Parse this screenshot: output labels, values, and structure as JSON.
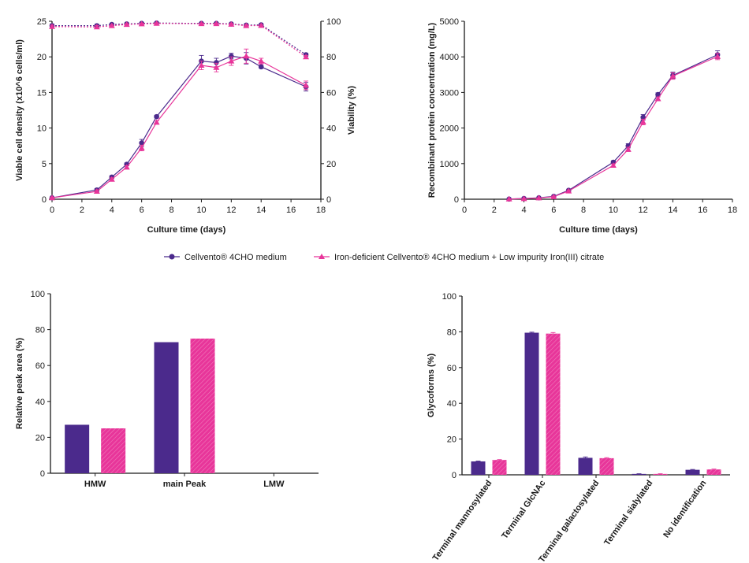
{
  "colors": {
    "purple": "#4b2a8c",
    "pink": "#e8359a",
    "axis": "#1a1a1a"
  },
  "legend": {
    "items": [
      {
        "label": "Cellvento® 4CHO medium",
        "color": "#4b2a8c",
        "marker": "circle"
      },
      {
        "label": "Iron-deficient Cellvento® 4CHO medium + Low impurity Iron(III) citrate",
        "color": "#e8359a",
        "marker": "triangle"
      }
    ]
  },
  "chart_data": [
    {
      "id": "growth",
      "type": "line",
      "xlabel": "Culture time (days)",
      "ylabel": "Viable cell density (x10^6 cells/ml)",
      "y2label": "Viability (%)",
      "xlim": [
        0,
        18
      ],
      "xticks": [
        0,
        2,
        4,
        6,
        8,
        10,
        12,
        14,
        16,
        18
      ],
      "ylim": [
        0,
        25
      ],
      "yticks": [
        0,
        5,
        10,
        15,
        20,
        25
      ],
      "y2lim": [
        0,
        100
      ],
      "y2ticks": [
        0,
        20,
        40,
        60,
        80,
        100
      ],
      "series": [
        {
          "key": "vcd_purple",
          "axis": "left",
          "style": "solid",
          "marker": "circle",
          "color": "#4b2a8c",
          "x": [
            0,
            3,
            4,
            5,
            6,
            7,
            10,
            11,
            12,
            13,
            14,
            17
          ],
          "y": [
            0.2,
            1.3,
            3.1,
            4.9,
            7.9,
            11.6,
            19.4,
            19.2,
            20.1,
            19.8,
            18.6,
            15.8
          ],
          "err": [
            0.1,
            0.2,
            0.2,
            0.2,
            0.5,
            0.2,
            0.8,
            0.6,
            0.4,
            0.8,
            0.2,
            0.6
          ]
        },
        {
          "key": "vcd_pink",
          "axis": "left",
          "style": "solid",
          "marker": "triangle",
          "color": "#e8359a",
          "x": [
            0,
            3,
            4,
            5,
            6,
            7,
            10,
            11,
            12,
            13,
            14,
            17
          ],
          "y": [
            0.2,
            1.1,
            2.8,
            4.5,
            7.2,
            10.8,
            18.8,
            18.5,
            19.4,
            20.1,
            19.4,
            16.0
          ],
          "err": [
            0.1,
            0.2,
            0.2,
            0.2,
            0.4,
            0.2,
            0.6,
            0.6,
            0.6,
            1.0,
            0.4,
            0.6
          ]
        },
        {
          "key": "via_purple",
          "axis": "right",
          "style": "dashed",
          "marker": "circle",
          "color": "#4b2a8c",
          "x": [
            0,
            3,
            4,
            5,
            6,
            7,
            10,
            11,
            12,
            13,
            14,
            17
          ],
          "y": [
            97.5,
            97.5,
            98.2,
            98.5,
            98.8,
            99.0,
            98.8,
            98.8,
            98.5,
            97.8,
            98.0,
            81.2
          ],
          "err": [
            1.0,
            0.8,
            0.5,
            0.4,
            0.4,
            0.3,
            0.3,
            0.3,
            0.4,
            0.5,
            0.4,
            0.8
          ]
        },
        {
          "key": "via_pink",
          "axis": "right",
          "style": "dashed",
          "marker": "triangle",
          "color": "#e8359a",
          "x": [
            0,
            3,
            4,
            5,
            6,
            7,
            10,
            11,
            12,
            13,
            14,
            17
          ],
          "y": [
            97.0,
            96.8,
            97.5,
            98.2,
            98.5,
            98.8,
            98.6,
            98.6,
            98.3,
            97.5,
            97.6,
            80.0
          ],
          "err": [
            0.8,
            0.8,
            0.5,
            0.4,
            0.4,
            0.3,
            0.3,
            0.3,
            0.4,
            0.5,
            0.4,
            0.8
          ]
        }
      ]
    },
    {
      "id": "protein",
      "type": "line",
      "xlabel": "Culture time (days)",
      "ylabel": "Recombinant protein concentration (mg/L)",
      "xlim": [
        0,
        18
      ],
      "xticks": [
        0,
        2,
        4,
        6,
        8,
        10,
        12,
        14,
        16,
        18
      ],
      "ylim": [
        0,
        5000
      ],
      "yticks": [
        0,
        1000,
        2000,
        3000,
        4000,
        5000
      ],
      "series": [
        {
          "key": "prot_purple",
          "marker": "circle",
          "color": "#4b2a8c",
          "x": [
            3,
            4,
            5,
            6,
            7,
            10,
            11,
            12,
            13,
            14,
            17
          ],
          "y": [
            5,
            20,
            40,
            80,
            250,
            1040,
            1500,
            2300,
            2940,
            3480,
            4060
          ],
          "err": [
            5,
            10,
            10,
            20,
            30,
            40,
            60,
            80,
            50,
            90,
            110
          ]
        },
        {
          "key": "prot_pink",
          "marker": "triangle",
          "color": "#e8359a",
          "x": [
            3,
            4,
            5,
            6,
            7,
            10,
            11,
            12,
            13,
            14,
            17
          ],
          "y": [
            5,
            15,
            35,
            70,
            230,
            950,
            1400,
            2170,
            2820,
            3460,
            4010
          ],
          "err": [
            5,
            10,
            10,
            20,
            30,
            40,
            60,
            80,
            50,
            90,
            90
          ]
        }
      ]
    },
    {
      "id": "peaks",
      "type": "bar",
      "ylabel": "Relative peak area (%)",
      "categories": [
        "HMW",
        "main Peak",
        "LMW"
      ],
      "ylim": [
        0,
        100
      ],
      "yticks": [
        0,
        20,
        40,
        60,
        80,
        100
      ],
      "series": [
        {
          "key": "peak_purple",
          "color": "#4b2a8c",
          "values": [
            27,
            73,
            0
          ]
        },
        {
          "key": "peak_pink",
          "color": "#e8359a",
          "values": [
            25,
            75,
            0
          ]
        }
      ]
    },
    {
      "id": "glyco",
      "type": "bar",
      "ylabel": "Glycoforms (%)",
      "categories": [
        "Terminal mannosylated",
        "Terminal GlcNAc",
        "Terminal galactosylated",
        "Terminal sialylated",
        "No identification"
      ],
      "ylim": [
        0,
        100
      ],
      "yticks": [
        0,
        20,
        40,
        60,
        80,
        100
      ],
      "series": [
        {
          "key": "gly_purple",
          "color": "#4b2a8c",
          "values": [
            7.5,
            79.5,
            9.5,
            0.5,
            2.8
          ],
          "err": [
            0.2,
            0.3,
            0.5,
            0.1,
            0.2
          ]
        },
        {
          "key": "gly_pink",
          "color": "#e8359a",
          "values": [
            8.3,
            79.0,
            9.3,
            0.5,
            3.0
          ],
          "err": [
            0.2,
            0.6,
            0.3,
            0.1,
            0.2
          ]
        }
      ]
    }
  ]
}
